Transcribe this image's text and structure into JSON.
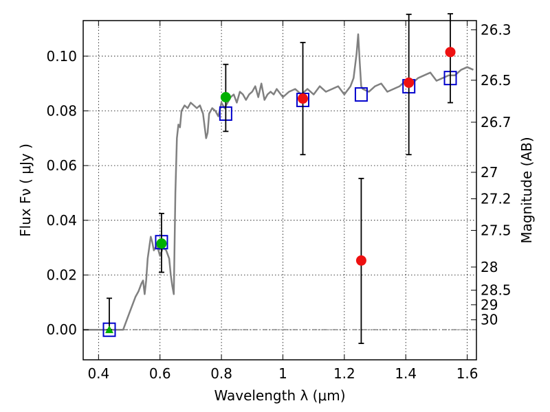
{
  "chart_data": {
    "type": "scatter",
    "xlabel": "Wavelength  λ (μm)",
    "ylabel": "Flux  Fν  ( μJy )",
    "y2label": "Magnitude (AB)",
    "xlim": [
      0.35,
      1.63
    ],
    "ylim": [
      -0.011,
      0.113
    ],
    "grid": true,
    "x_ticks": [
      0.4,
      0.6,
      0.8,
      1.0,
      1.2,
      1.4,
      1.6
    ],
    "x_tick_labels": [
      "0.4",
      "0.6",
      "0.8",
      "1",
      "1.2",
      "1.4",
      "1.6"
    ],
    "y_ticks": [
      0.0,
      0.02,
      0.04,
      0.06,
      0.08,
      0.1
    ],
    "y_tick_labels": [
      "0.00",
      "0.02",
      "0.04",
      "0.06",
      "0.08",
      "0.10"
    ],
    "mag_ticks": [
      "26.3",
      "26.5",
      "26.7",
      "27",
      "27.2",
      "27.5",
      "28",
      "28.5",
      "29",
      "30"
    ],
    "colors": {
      "sed": "#808080",
      "model": "#0000cc",
      "green": "#00b000",
      "red": "#ee1111",
      "error": "#000000"
    },
    "zero_line": {
      "y": 0.0,
      "style": "dash-dot"
    },
    "sed_curve": {
      "x": [
        0.35,
        0.48,
        0.5,
        0.52,
        0.53,
        0.54,
        0.545,
        0.55,
        0.555,
        0.56,
        0.57,
        0.575,
        0.58,
        0.59,
        0.6,
        0.61,
        0.62,
        0.63,
        0.635,
        0.64,
        0.645,
        0.65,
        0.655,
        0.66,
        0.665,
        0.67,
        0.68,
        0.69,
        0.7,
        0.71,
        0.72,
        0.73,
        0.74,
        0.75,
        0.755,
        0.76,
        0.77,
        0.78,
        0.79,
        0.8,
        0.81,
        0.82,
        0.83,
        0.84,
        0.85,
        0.86,
        0.87,
        0.88,
        0.89,
        0.9,
        0.91,
        0.92,
        0.93,
        0.94,
        0.95,
        0.96,
        0.97,
        0.98,
        1.0,
        1.02,
        1.04,
        1.06,
        1.08,
        1.1,
        1.12,
        1.14,
        1.16,
        1.18,
        1.2,
        1.22,
        1.23,
        1.24,
        1.245,
        1.25,
        1.255,
        1.26,
        1.28,
        1.3,
        1.32,
        1.34,
        1.36,
        1.38,
        1.4,
        1.42,
        1.44,
        1.46,
        1.48,
        1.5,
        1.52,
        1.54,
        1.56,
        1.58,
        1.6,
        1.62
      ],
      "y": [
        0.0,
        0.0,
        0.006,
        0.012,
        0.014,
        0.017,
        0.018,
        0.013,
        0.018,
        0.026,
        0.034,
        0.032,
        0.029,
        0.031,
        0.027,
        0.03,
        0.029,
        0.026,
        0.02,
        0.016,
        0.013,
        0.05,
        0.07,
        0.075,
        0.074,
        0.08,
        0.082,
        0.081,
        0.083,
        0.082,
        0.081,
        0.082,
        0.079,
        0.07,
        0.072,
        0.079,
        0.081,
        0.08,
        0.078,
        0.083,
        0.081,
        0.083,
        0.085,
        0.086,
        0.083,
        0.087,
        0.086,
        0.084,
        0.086,
        0.087,
        0.089,
        0.085,
        0.09,
        0.084,
        0.086,
        0.087,
        0.086,
        0.088,
        0.085,
        0.087,
        0.088,
        0.086,
        0.088,
        0.086,
        0.089,
        0.087,
        0.088,
        0.089,
        0.086,
        0.089,
        0.092,
        0.101,
        0.108,
        0.098,
        0.089,
        0.088,
        0.087,
        0.089,
        0.09,
        0.087,
        0.088,
        0.089,
        0.091,
        0.09,
        0.092,
        0.093,
        0.094,
        0.091,
        0.092,
        0.093,
        0.093,
        0.095,
        0.096,
        0.095
      ]
    },
    "model_squares": {
      "x": [
        0.435,
        0.605,
        0.814,
        1.065,
        1.255,
        1.41,
        1.545
      ],
      "y": [
        0.0,
        0.032,
        0.079,
        0.084,
        0.086,
        0.089,
        0.092
      ]
    },
    "observed_points": [
      {
        "x": 0.435,
        "y": 0.0,
        "yerr": [
          0.0,
          0.0115
        ],
        "color": "green",
        "marker": "triangle"
      },
      {
        "x": 0.605,
        "y": 0.0315,
        "yerr": [
          0.0105,
          0.011
        ],
        "color": "green",
        "marker": "circle"
      },
      {
        "x": 0.814,
        "y": 0.085,
        "yerr": [
          0.0125,
          0.012
        ],
        "color": "green",
        "marker": "circle"
      },
      {
        "x": 1.065,
        "y": 0.0845,
        "yerr": [
          0.0205,
          0.0205
        ],
        "color": "red",
        "marker": "circle"
      },
      {
        "x": 1.255,
        "y": 0.0253,
        "yerr": [
          0.0303,
          0.03
        ],
        "color": "red",
        "marker": "circle"
      },
      {
        "x": 1.41,
        "y": 0.0903,
        "yerr": [
          0.0263,
          0.025
        ],
        "color": "red",
        "marker": "circle"
      },
      {
        "x": 1.545,
        "y": 0.1015,
        "yerr": [
          0.0185,
          0.014
        ],
        "color": "red",
        "marker": "circle"
      }
    ]
  }
}
